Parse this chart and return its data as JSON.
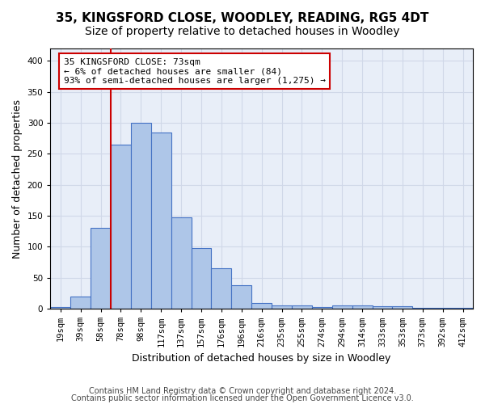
{
  "title_line1": "35, KINGSFORD CLOSE, WOODLEY, READING, RG5 4DT",
  "title_line2": "Size of property relative to detached houses in Woodley",
  "xlabel": "Distribution of detached houses by size in Woodley",
  "ylabel": "Number of detached properties",
  "categories": [
    "19sqm",
    "39sqm",
    "58sqm",
    "78sqm",
    "98sqm",
    "117sqm",
    "137sqm",
    "157sqm",
    "176sqm",
    "196sqm",
    "216sqm",
    "235sqm",
    "255sqm",
    "274sqm",
    "294sqm",
    "314sqm",
    "333sqm",
    "353sqm",
    "373sqm",
    "392sqm",
    "412sqm"
  ],
  "values": [
    3,
    20,
    130,
    265,
    300,
    285,
    148,
    98,
    65,
    38,
    9,
    6,
    5,
    3,
    5,
    5,
    4,
    4,
    2,
    2,
    1
  ],
  "bar_color": "#aec6e8",
  "bar_edge_color": "#4472c4",
  "vline_x": 2.5,
  "vline_color": "#cc0000",
  "annotation_text": "35 KINGSFORD CLOSE: 73sqm\n← 6% of detached houses are smaller (84)\n93% of semi-detached houses are larger (1,275) →",
  "annotation_box_color": "#ffffff",
  "annotation_box_edge_color": "#cc0000",
  "ylim": [
    0,
    420
  ],
  "yticks": [
    0,
    50,
    100,
    150,
    200,
    250,
    300,
    350,
    400
  ],
  "grid_color": "#d0d8e8",
  "background_color": "#e8eef8",
  "footnote1": "Contains HM Land Registry data © Crown copyright and database right 2024.",
  "footnote2": "Contains public sector information licensed under the Open Government Licence v3.0.",
  "title_fontsize": 11,
  "subtitle_fontsize": 10,
  "axis_label_fontsize": 9,
  "tick_fontsize": 7.5,
  "annotation_fontsize": 8,
  "footnote_fontsize": 7
}
